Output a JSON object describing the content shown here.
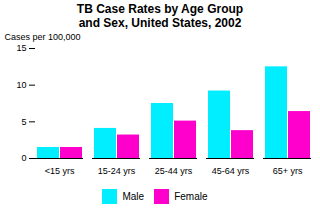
{
  "chart_data": {
    "type": "bar",
    "title": "TB Case Rates by Age Group\nand Sex, United States, 2002",
    "categories": [
      "<15 yrs",
      "15-24 yrs",
      "25-44 yrs",
      "45-64 yrs",
      "65+ yrs"
    ],
    "series": [
      {
        "name": "Male",
        "color": "#00EEFF",
        "values": [
          1.5,
          4.1,
          7.5,
          9.2,
          12.5
        ]
      },
      {
        "name": "Female",
        "color": "#FF00CC",
        "values": [
          1.5,
          3.2,
          5.1,
          3.8,
          6.4
        ]
      }
    ],
    "ylabel": "Cases per 100,000",
    "ylim": [
      0,
      15
    ],
    "yticks": [
      0,
      5,
      10,
      15
    ],
    "grid": false,
    "legend": "bottom"
  }
}
